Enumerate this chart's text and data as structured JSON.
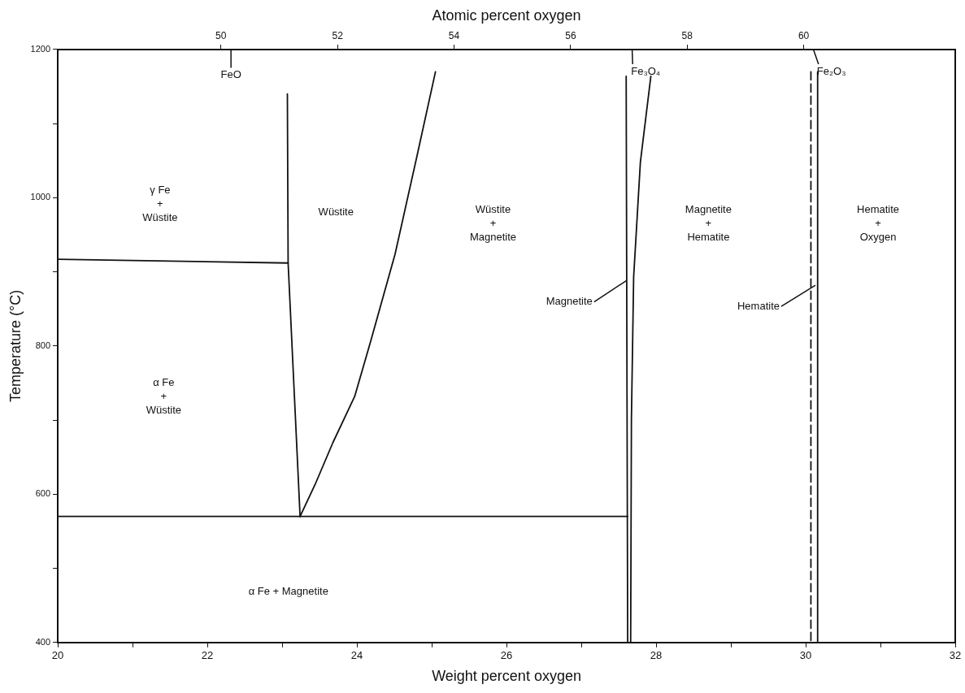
{
  "chart_data": {
    "type": "line",
    "xlabel": "Weight percent oxygen",
    "ylabel": "Temperature (°C)",
    "x2label": "Atomic percent oxygen",
    "xlim": [
      20,
      32
    ],
    "ylim": [
      400,
      1200
    ],
    "xticks": [
      20,
      {
        "value": 21,
        "label": null
      },
      22,
      {
        "value": 23,
        "label": null
      },
      24,
      {
        "value": 25,
        "label": null
      },
      26,
      {
        "value": 27,
        "label": null
      },
      28,
      {
        "value": 29,
        "label": null
      },
      30,
      {
        "value": 31,
        "label": null
      },
      32
    ],
    "yticks": [
      400,
      {
        "value": 500,
        "label": null
      },
      600,
      {
        "value": 700,
        "label": null
      },
      800,
      {
        "value": 900,
        "label": null
      },
      1000,
      {
        "value": 1100,
        "label": null
      },
      1200
    ],
    "x2lim": [
      47.2,
      62.6
    ],
    "x2ticks": [
      50,
      52,
      54,
      56,
      58,
      60
    ],
    "grid": false,
    "marker": "none",
    "line_style": "solid",
    "series": [
      {
        "color": "#111111",
        "x": [
          20,
          23.08
        ],
        "values": [
          917,
          912
        ]
      },
      {
        "color": "#111111",
        "x": [
          23.07,
          23.08,
          23.24
        ],
        "values": [
          1140,
          912,
          570
        ]
      },
      {
        "color": "#111111",
        "x": [
          23.24,
          23.44,
          23.68,
          23.97,
          24.18,
          24.51,
          24.8,
          25.05
        ],
        "values": [
          570,
          613,
          670,
          732,
          805,
          924,
          1055,
          1170
        ]
      },
      {
        "color": "#111111",
        "x": [
          20,
          27.62
        ],
        "values": [
          570,
          570
        ]
      },
      {
        "color": "#111111",
        "x": [
          27.6,
          27.62
        ],
        "values": [
          1164,
          400
        ]
      },
      {
        "color": "#111111",
        "x": [
          27.93,
          27.79,
          27.7,
          27.67,
          27.66
        ],
        "values": [
          1164,
          1048,
          893,
          700,
          400
        ]
      },
      {
        "color": "#111111",
        "line_style": "dashed",
        "x": [
          30.07,
          30.07
        ],
        "values": [
          1170,
          400
        ]
      },
      {
        "color": "#111111",
        "x": [
          30.16,
          30.16
        ],
        "values": [
          1170,
          400
        ]
      }
    ],
    "annotations": [
      "γ Fe\n+\nWüstite",
      "α Fe\n+\nWüstite",
      "Wüstite",
      "Wüstite\n+\nMagnetite",
      "Magnetite\n+\nHematite",
      "Hematite\n+\nOxygen",
      "α Fe + Magnetite",
      "FeO",
      "Fe₃O₄",
      "Fe₂O₃",
      {
        "text": "Magnetite",
        "x": 27.6,
        "y": 888
      },
      {
        "text": "Hematite",
        "x": 30.13,
        "y": 882
      }
    ]
  }
}
